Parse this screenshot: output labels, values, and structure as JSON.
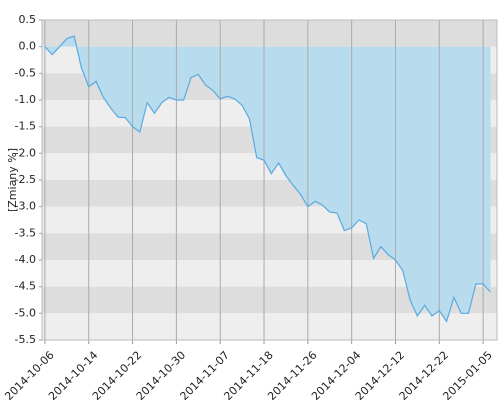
{
  "chart_data": {
    "type": "area",
    "y_label": "[Zmiany %]",
    "categories": [
      "2014-10-06",
      null,
      null,
      null,
      null,
      null,
      "2014-10-14",
      null,
      null,
      null,
      null,
      null,
      "2014-10-22",
      null,
      null,
      null,
      null,
      null,
      "2014-10-30",
      null,
      null,
      null,
      null,
      null,
      "2014-11-07",
      null,
      null,
      null,
      null,
      null,
      "2014-11-18",
      null,
      null,
      null,
      null,
      null,
      "2014-11-26",
      null,
      null,
      null,
      null,
      null,
      "2014-12-04",
      null,
      null,
      null,
      null,
      null,
      "2014-12-12",
      null,
      null,
      null,
      null,
      null,
      "2014-12-22",
      null,
      null,
      null,
      null,
      null,
      "2015-01-05",
      null
    ],
    "values": [
      0,
      -0.15,
      0,
      0.15,
      0.2,
      -0.4,
      -0.75,
      -0.65,
      -0.95,
      -1.15,
      -1.32,
      -1.33,
      -1.5,
      -1.6,
      -1.05,
      -1.25,
      -1.05,
      -0.95,
      -1.0,
      -1.0,
      -0.58,
      -0.52,
      -0.72,
      -0.82,
      -0.98,
      -0.93,
      -0.98,
      -1.1,
      -1.35,
      -2.08,
      -2.13,
      -2.38,
      -2.18,
      -2.42,
      -2.6,
      -2.77,
      -3.0,
      -2.9,
      -2.97,
      -3.1,
      -3.12,
      -3.45,
      -3.4,
      -3.25,
      -3.32,
      -3.97,
      -3.75,
      -3.9,
      -4.0,
      -4.2,
      -4.75,
      -5.05,
      -4.85,
      -5.05,
      -4.95,
      -5.15,
      -4.7,
      -5.0,
      -5.0,
      -4.45,
      -4.45,
      -4.6
    ],
    "color": "#5aaae0",
    "fill": "#b8dcee",
    "ylim": [
      -5.5,
      0.5
    ],
    "yticks": [
      0.5,
      {
        "value": 0,
        "label": "0.0"
      },
      -0.5,
      {
        "value": -1,
        "label": "-1.0"
      },
      -1.5,
      {
        "value": -2,
        "label": "-2.0"
      },
      -2.5,
      {
        "value": -3,
        "label": "-3.0"
      },
      -3.5,
      {
        "value": -4,
        "label": "-4.0"
      },
      -4.5,
      {
        "value": -5,
        "label": "-5.0"
      },
      -5.5
    ],
    "grid": true
  }
}
